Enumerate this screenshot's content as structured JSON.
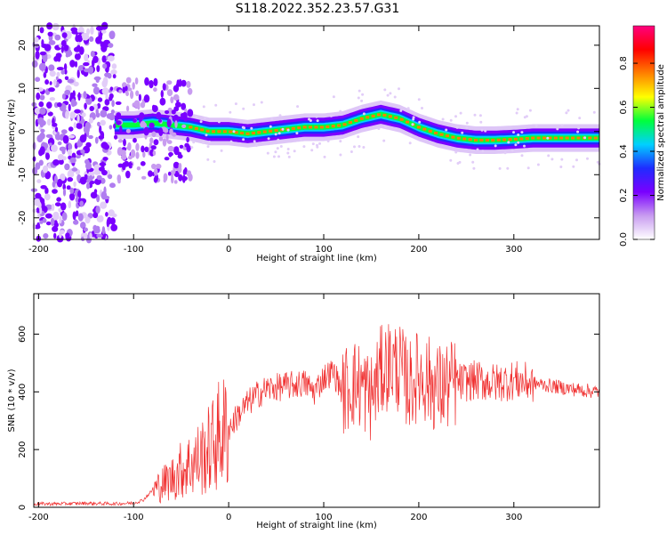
{
  "title": "S118.2022.352.23.57.G31",
  "chart_data": [
    {
      "type": "heatmap",
      "xlabel": "Height of straight line (km)",
      "ylabel": "Frequency (Hz)",
      "xlim": [
        -205,
        390
      ],
      "ylim": [
        -25,
        24.5
      ],
      "x_ticks": [
        -200,
        -100,
        0,
        100,
        200,
        300
      ],
      "y_ticks": [
        -20,
        -10,
        0,
        10,
        20
      ],
      "colorbar": {
        "label": "Normalized spectral amplitude",
        "range": [
          0,
          0.97
        ],
        "ticks": [
          0.0,
          0.2,
          0.4,
          0.6,
          0.8
        ],
        "colormap": [
          "#ffffff",
          "#c89cf0",
          "#7a00ff",
          "#1f2cff",
          "#00d0ff",
          "#00ff3c",
          "#ffff00",
          "#ff8000",
          "#ff0000",
          "#ff007f"
        ]
      },
      "ridge": {
        "x": [
          -120,
          -100,
          -80,
          -60,
          -40,
          -20,
          0,
          20,
          40,
          60,
          80,
          100,
          120,
          140,
          160,
          180,
          200,
          220,
          240,
          260,
          280,
          300,
          320,
          340,
          360,
          390
        ],
        "y": [
          1.5,
          1.5,
          2.0,
          1.5,
          1.0,
          0.0,
          0.0,
          -0.5,
          0.0,
          0.5,
          1.0,
          1.0,
          1.5,
          3.0,
          4.0,
          3.0,
          1.0,
          -0.5,
          -1.5,
          -2.0,
          -2.0,
          -1.8,
          -1.5,
          -1.5,
          -1.5,
          -1.5
        ]
      }
    },
    {
      "type": "line",
      "xlabel": "Height of straight line (km)",
      "ylabel": "SNR (10 * v/v)",
      "xlim": [
        -205,
        390
      ],
      "ylim": [
        0,
        740
      ],
      "x_ticks": [
        -200,
        -100,
        0,
        100,
        200,
        300
      ],
      "y_ticks": [
        0,
        200,
        400,
        600
      ],
      "color": "#f03030",
      "series": [
        {
          "x": [
            -205,
            -180,
            -150,
            -120,
            -100,
            -90,
            -80,
            -70,
            -60,
            -50,
            -40,
            -30,
            -20,
            -10,
            0,
            10,
            20,
            30,
            40,
            60,
            80,
            90,
            100,
            110,
            120,
            130,
            140,
            150,
            160,
            170,
            180,
            190,
            200,
            210,
            220,
            240,
            260,
            280,
            300,
            320,
            340,
            360,
            390
          ],
          "y": [
            12,
            12,
            14,
            12,
            15,
            25,
            60,
            80,
            100,
            130,
            150,
            170,
            200,
            250,
            270,
            320,
            360,
            390,
            410,
            420,
            430,
            400,
            450,
            470,
            400,
            430,
            420,
            380,
            470,
            500,
            480,
            420,
            460,
            440,
            410,
            430,
            440,
            430,
            440,
            430,
            420,
            410,
            400
          ]
        }
      ]
    }
  ]
}
